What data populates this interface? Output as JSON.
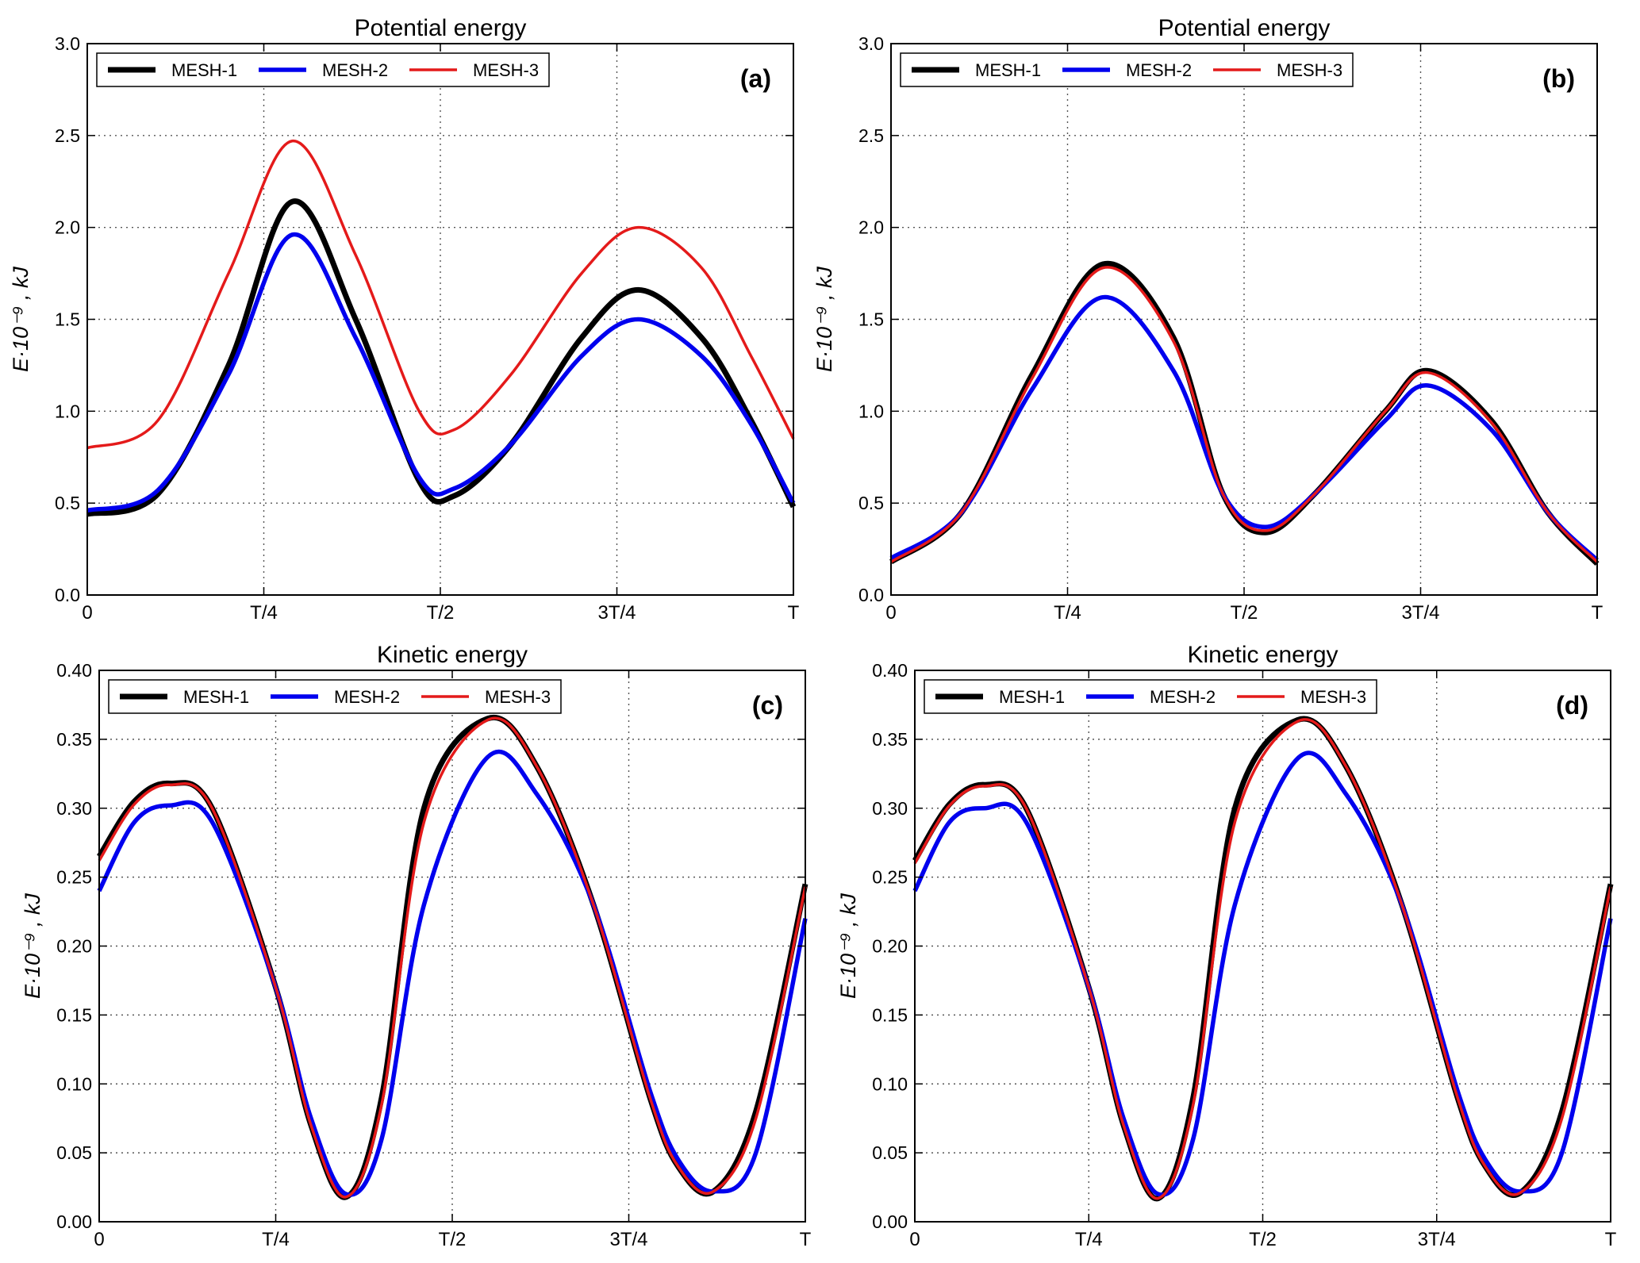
{
  "figure": {
    "x_tick_labels": [
      "0",
      "T/4",
      "T/2",
      "3T/4",
      "T"
    ],
    "series_styles": {
      "MESH-1": {
        "color": "#000000"
      },
      "MESH-2": {
        "color": "#0000ee"
      },
      "MESH-3": {
        "color": "#e41a1a"
      }
    }
  },
  "chart_data": [
    {
      "id": "a",
      "type": "line",
      "title": "Potential energy",
      "panel_label": "(a)",
      "ylabel": "E·10⁻⁹ , kJ",
      "xlim": [
        0,
        1
      ],
      "ylim": [
        0,
        3.0
      ],
      "x_ticks": [
        0,
        0.25,
        0.5,
        0.75,
        1.0
      ],
      "x_tick_labels": [
        "0",
        "T/4",
        "T/2",
        "3T/4",
        "T"
      ],
      "y_ticks": [
        "0.0",
        "0.5",
        "1.0",
        "1.5",
        "2.0",
        "2.5",
        "3.0"
      ],
      "grid": true,
      "legend_position": "top-left",
      "x": [
        0,
        0.1,
        0.2,
        0.29,
        0.38,
        0.47,
        0.52,
        0.6,
        0.7,
        0.78,
        0.87,
        0.94,
        1.0
      ],
      "series": [
        {
          "name": "MESH-1",
          "values": [
            0.44,
            0.55,
            1.25,
            2.14,
            1.5,
            0.62,
            0.54,
            0.82,
            1.4,
            1.66,
            1.4,
            0.95,
            0.48
          ]
        },
        {
          "name": "MESH-2",
          "values": [
            0.46,
            0.57,
            1.2,
            1.96,
            1.4,
            0.64,
            0.58,
            0.82,
            1.3,
            1.5,
            1.3,
            0.93,
            0.5
          ]
        },
        {
          "name": "MESH-3",
          "values": [
            0.8,
            0.95,
            1.75,
            2.47,
            1.85,
            1.0,
            0.9,
            1.2,
            1.75,
            2.0,
            1.78,
            1.3,
            0.85
          ]
        }
      ]
    },
    {
      "id": "b",
      "type": "line",
      "title": "Potential energy",
      "panel_label": "(b)",
      "ylabel": "E·10⁻⁹ , kJ",
      "xlim": [
        0,
        1
      ],
      "ylim": [
        0,
        3.0
      ],
      "x_ticks": [
        0,
        0.25,
        0.5,
        0.75,
        1.0
      ],
      "x_tick_labels": [
        "0",
        "T/4",
        "T/2",
        "3T/4",
        "T"
      ],
      "y_ticks": [
        "0.0",
        "0.5",
        "1.0",
        "1.5",
        "2.0",
        "2.5",
        "3.0"
      ],
      "grid": true,
      "legend_position": "top-left",
      "x": [
        0,
        0.1,
        0.2,
        0.3,
        0.4,
        0.47,
        0.53,
        0.6,
        0.7,
        0.76,
        0.85,
        0.93,
        1.0
      ],
      "series": [
        {
          "name": "MESH-1",
          "values": [
            0.18,
            0.45,
            1.2,
            1.8,
            1.4,
            0.55,
            0.34,
            0.55,
            1.0,
            1.22,
            0.95,
            0.45,
            0.17
          ]
        },
        {
          "name": "MESH-2",
          "values": [
            0.2,
            0.45,
            1.12,
            1.62,
            1.22,
            0.55,
            0.37,
            0.55,
            0.95,
            1.14,
            0.9,
            0.45,
            0.19
          ]
        },
        {
          "name": "MESH-3",
          "values": [
            0.18,
            0.45,
            1.18,
            1.78,
            1.38,
            0.55,
            0.35,
            0.55,
            1.0,
            1.21,
            0.94,
            0.45,
            0.18
          ]
        }
      ]
    },
    {
      "id": "c",
      "type": "line",
      "title": "Kinetic energy",
      "panel_label": "(c)",
      "ylabel": "E·10⁻⁹ , kJ",
      "xlim": [
        0,
        1
      ],
      "ylim": [
        0,
        0.4
      ],
      "x_ticks": [
        0,
        0.25,
        0.5,
        0.75,
        1.0
      ],
      "x_tick_labels": [
        "0",
        "T/4",
        "T/2",
        "3T/4",
        "T"
      ],
      "y_ticks": [
        "0.00",
        "0.05",
        "0.10",
        "0.15",
        "0.20",
        "0.25",
        "0.30",
        "0.35",
        "0.40"
      ],
      "grid": true,
      "legend_position": "top-left",
      "x": [
        0,
        0.05,
        0.1,
        0.16,
        0.25,
        0.3,
        0.35,
        0.4,
        0.46,
        0.55,
        0.62,
        0.7,
        0.78,
        0.82,
        0.87,
        0.93,
        1.0
      ],
      "series": [
        {
          "name": "MESH-1",
          "values": [
            0.265,
            0.305,
            0.318,
            0.3,
            0.17,
            0.07,
            0.018,
            0.09,
            0.3,
            0.365,
            0.33,
            0.23,
            0.09,
            0.04,
            0.022,
            0.08,
            0.245
          ]
        },
        {
          "name": "MESH-2",
          "values": [
            0.24,
            0.29,
            0.302,
            0.29,
            0.17,
            0.075,
            0.02,
            0.06,
            0.23,
            0.337,
            0.31,
            0.23,
            0.095,
            0.045,
            0.022,
            0.05,
            0.22
          ]
        },
        {
          "name": "MESH-3",
          "values": [
            0.262,
            0.303,
            0.317,
            0.3,
            0.17,
            0.07,
            0.018,
            0.085,
            0.29,
            0.364,
            0.33,
            0.23,
            0.09,
            0.04,
            0.022,
            0.075,
            0.243
          ]
        }
      ]
    },
    {
      "id": "d",
      "type": "line",
      "title": "Kinetic energy",
      "panel_label": "(d)",
      "ylabel": "E·10⁻⁹ , kJ",
      "xlim": [
        0,
        1
      ],
      "ylim": [
        0,
        0.4
      ],
      "x_ticks": [
        0,
        0.25,
        0.5,
        0.75,
        1.0
      ],
      "x_tick_labels": [
        "0",
        "T/4",
        "T/2",
        "3T/4",
        "T"
      ],
      "y_ticks": [
        "0.00",
        "0.05",
        "0.10",
        "0.15",
        "0.20",
        "0.25",
        "0.30",
        "0.35",
        "0.40"
      ],
      "grid": true,
      "legend_position": "top-left",
      "x": [
        0,
        0.05,
        0.1,
        0.16,
        0.25,
        0.3,
        0.35,
        0.4,
        0.46,
        0.55,
        0.62,
        0.7,
        0.78,
        0.82,
        0.87,
        0.93,
        1.0
      ],
      "series": [
        {
          "name": "MESH-1",
          "values": [
            0.262,
            0.303,
            0.317,
            0.3,
            0.17,
            0.07,
            0.017,
            0.09,
            0.3,
            0.364,
            0.33,
            0.23,
            0.09,
            0.04,
            0.021,
            0.08,
            0.245
          ]
        },
        {
          "name": "MESH-2",
          "values": [
            0.24,
            0.29,
            0.3,
            0.29,
            0.17,
            0.075,
            0.02,
            0.06,
            0.23,
            0.336,
            0.31,
            0.23,
            0.095,
            0.045,
            0.022,
            0.05,
            0.22
          ]
        },
        {
          "name": "MESH-3",
          "values": [
            0.26,
            0.302,
            0.316,
            0.3,
            0.17,
            0.07,
            0.017,
            0.085,
            0.29,
            0.363,
            0.33,
            0.23,
            0.09,
            0.04,
            0.021,
            0.075,
            0.243
          ]
        }
      ]
    }
  ]
}
